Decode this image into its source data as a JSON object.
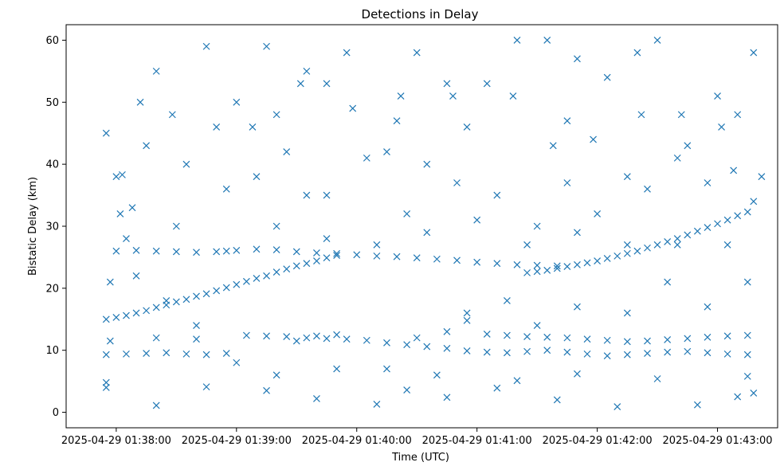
{
  "chart_data": {
    "type": "scatter",
    "title": "Detections in Delay",
    "xlabel": "Time (UTC)",
    "ylabel": "Bistatic Delay (km)",
    "marker": "x",
    "color": "#1f77b4",
    "grid": false,
    "x_unit": "seconds after 2025-04-29 01:38:00",
    "xlim": [
      -25,
      330
    ],
    "ylim": [
      -2.5,
      62.5
    ],
    "x_ticks": [
      {
        "value": 0,
        "label": "2025-04-29 01:38:00"
      },
      {
        "value": 60,
        "label": "2025-04-29 01:39:00"
      },
      {
        "value": 120,
        "label": "2025-04-29 01:40:00"
      },
      {
        "value": 180,
        "label": "2025-04-29 01:41:00"
      },
      {
        "value": 240,
        "label": "2025-04-29 01:42:00"
      },
      {
        "value": 300,
        "label": "2025-04-29 01:43:00"
      }
    ],
    "y_ticks": [
      {
        "value": 0,
        "label": "0"
      },
      {
        "value": 10,
        "label": "10"
      },
      {
        "value": 20,
        "label": "20"
      },
      {
        "value": 30,
        "label": "30"
      },
      {
        "value": 40,
        "label": "40"
      },
      {
        "value": 50,
        "label": "50"
      },
      {
        "value": 60,
        "label": "60"
      }
    ],
    "series": [
      {
        "values": [
          [
            -5,
            15
          ],
          [
            0,
            15.3
          ],
          [
            5,
            15.6
          ],
          [
            10,
            16
          ],
          [
            15,
            16.4
          ],
          [
            20,
            16.9
          ],
          [
            25,
            17.3
          ],
          [
            30,
            17.8
          ],
          [
            35,
            18.2
          ],
          [
            40,
            18.7
          ],
          [
            45,
            19.1
          ],
          [
            50,
            19.6
          ],
          [
            55,
            20.1
          ],
          [
            60,
            20.6
          ],
          [
            65,
            21.1
          ],
          [
            70,
            21.6
          ],
          [
            75,
            22
          ],
          [
            80,
            22.6
          ],
          [
            85,
            23.1
          ],
          [
            90,
            23.6
          ],
          [
            95,
            24
          ],
          [
            100,
            24.4
          ],
          [
            105,
            24.9
          ],
          [
            110,
            25.3
          ],
          [
            205,
            22.5
          ],
          [
            210,
            22.7
          ],
          [
            215,
            22.9
          ],
          [
            220,
            23.2
          ],
          [
            225,
            23.5
          ],
          [
            230,
            23.8
          ],
          [
            235,
            24.1
          ],
          [
            240,
            24.4
          ],
          [
            245,
            24.8
          ],
          [
            250,
            25.2
          ],
          [
            255,
            25.6
          ],
          [
            260,
            26
          ],
          [
            265,
            26.5
          ],
          [
            270,
            27
          ],
          [
            275,
            27.5
          ],
          [
            280,
            28
          ],
          [
            285,
            28.6
          ],
          [
            290,
            29.2
          ],
          [
            295,
            29.8
          ],
          [
            300,
            30.4
          ],
          [
            305,
            31
          ],
          [
            310,
            31.7
          ],
          [
            315,
            32.3
          ],
          [
            0,
            26
          ],
          [
            10,
            26.1
          ],
          [
            20,
            26
          ],
          [
            30,
            25.9
          ],
          [
            40,
            25.8
          ],
          [
            50,
            25.9
          ],
          [
            60,
            26.1
          ],
          [
            70,
            26.3
          ],
          [
            80,
            26.2
          ],
          [
            90,
            25.9
          ],
          [
            100,
            25.7
          ],
          [
            110,
            25.6
          ],
          [
            120,
            25.4
          ],
          [
            130,
            25.2
          ],
          [
            140,
            25.1
          ],
          [
            150,
            24.9
          ],
          [
            160,
            24.7
          ],
          [
            170,
            24.5
          ],
          [
            180,
            24.2
          ],
          [
            190,
            24
          ],
          [
            200,
            23.8
          ],
          [
            210,
            23.7
          ],
          [
            220,
            23.6
          ],
          [
            -5,
            9.3
          ],
          [
            5,
            9.4
          ],
          [
            15,
            9.5
          ],
          [
            25,
            9.6
          ],
          [
            35,
            9.4
          ],
          [
            45,
            9.3
          ],
          [
            55,
            9.5
          ],
          [
            65,
            12.4
          ],
          [
            75,
            12.3
          ],
          [
            85,
            12.2
          ],
          [
            95,
            12
          ],
          [
            105,
            11.9
          ],
          [
            115,
            11.8
          ],
          [
            125,
            11.6
          ],
          [
            135,
            11.2
          ],
          [
            145,
            10.9
          ],
          [
            155,
            10.6
          ],
          [
            165,
            10.3
          ],
          [
            175,
            9.9
          ],
          [
            185,
            9.7
          ],
          [
            195,
            9.6
          ],
          [
            205,
            9.8
          ],
          [
            215,
            10
          ],
          [
            225,
            9.7
          ],
          [
            235,
            9.4
          ],
          [
            245,
            9.1
          ],
          [
            255,
            9.3
          ],
          [
            265,
            9.5
          ],
          [
            275,
            9.7
          ],
          [
            285,
            9.8
          ],
          [
            295,
            9.6
          ],
          [
            305,
            9.4
          ],
          [
            315,
            9.3
          ],
          [
            -3,
            11.5
          ],
          [
            20,
            12
          ],
          [
            40,
            11.8
          ],
          [
            90,
            11.5
          ],
          [
            100,
            12.3
          ],
          [
            110,
            12.5
          ],
          [
            150,
            12
          ],
          [
            165,
            13
          ],
          [
            175,
            14.8
          ],
          [
            185,
            12.6
          ],
          [
            195,
            12.4
          ],
          [
            205,
            12.2
          ],
          [
            215,
            12.1
          ],
          [
            225,
            12
          ],
          [
            235,
            11.8
          ],
          [
            245,
            11.6
          ],
          [
            255,
            11.4
          ],
          [
            265,
            11.5
          ],
          [
            275,
            11.7
          ],
          [
            285,
            11.9
          ],
          [
            295,
            12.1
          ],
          [
            305,
            12.3
          ],
          [
            315,
            12.4
          ],
          [
            45,
            4.1
          ],
          [
            130,
            1.3
          ],
          [
            165,
            2.4
          ],
          [
            190,
            3.9
          ],
          [
            220,
            2
          ],
          [
            250,
            0.9
          ],
          [
            290,
            1.2
          ],
          [
            310,
            2.5
          ],
          [
            318,
            3.1
          ],
          [
            -5,
            4.8
          ],
          [
            20,
            1.1
          ],
          [
            75,
            3.5
          ],
          [
            100,
            2.2
          ],
          [
            145,
            3.6
          ],
          [
            200,
            5.1
          ],
          [
            230,
            6.2
          ],
          [
            270,
            5.4
          ],
          [
            315,
            5.8
          ],
          [
            -5,
            45
          ],
          [
            0,
            38
          ],
          [
            15,
            43
          ],
          [
            20,
            55
          ],
          [
            45,
            59
          ],
          [
            60,
            50
          ],
          [
            75,
            59
          ],
          [
            80,
            48
          ],
          [
            95,
            55
          ],
          [
            105,
            53
          ],
          [
            115,
            58
          ],
          [
            140,
            47
          ],
          [
            150,
            58
          ],
          [
            165,
            53
          ],
          [
            175,
            46
          ],
          [
            185,
            53
          ],
          [
            200,
            60
          ],
          [
            215,
            60
          ],
          [
            225,
            47
          ],
          [
            230,
            57
          ],
          [
            245,
            54
          ],
          [
            260,
            58
          ],
          [
            270,
            60
          ],
          [
            285,
            43
          ],
          [
            300,
            51
          ],
          [
            310,
            48
          ],
          [
            318,
            58
          ],
          [
            2,
            32
          ],
          [
            8,
            33
          ],
          [
            35,
            40
          ],
          [
            55,
            36
          ],
          [
            70,
            38
          ],
          [
            85,
            42
          ],
          [
            95,
            35
          ],
          [
            105,
            35
          ],
          [
            125,
            41
          ],
          [
            135,
            42
          ],
          [
            145,
            32
          ],
          [
            155,
            40
          ],
          [
            170,
            37
          ],
          [
            190,
            35
          ],
          [
            210,
            30
          ],
          [
            225,
            37
          ],
          [
            240,
            32
          ],
          [
            255,
            38
          ],
          [
            265,
            36
          ],
          [
            280,
            41
          ],
          [
            295,
            37
          ],
          [
            308,
            39
          ],
          [
            318,
            34
          ],
          [
            -3,
            21
          ],
          [
            10,
            22
          ],
          [
            25,
            18
          ],
          [
            40,
            14
          ],
          [
            60,
            8
          ],
          [
            80,
            6
          ],
          [
            110,
            7
          ],
          [
            135,
            7
          ],
          [
            160,
            6
          ],
          [
            175,
            16
          ],
          [
            195,
            18
          ],
          [
            210,
            14
          ],
          [
            230,
            17
          ],
          [
            255,
            16
          ],
          [
            275,
            21
          ],
          [
            295,
            17
          ],
          [
            315,
            21
          ],
          [
            5,
            28
          ],
          [
            30,
            30
          ],
          [
            55,
            26
          ],
          [
            80,
            30
          ],
          [
            105,
            28
          ],
          [
            130,
            27
          ],
          [
            155,
            29
          ],
          [
            180,
            31
          ],
          [
            205,
            27
          ],
          [
            230,
            29
          ],
          [
            255,
            27
          ],
          [
            280,
            27
          ],
          [
            305,
            27
          ],
          [
            -5,
            4
          ],
          [
            3,
            38.3
          ],
          [
            12,
            50
          ],
          [
            28,
            48
          ],
          [
            50,
            46
          ],
          [
            68,
            46
          ],
          [
            92,
            53
          ],
          [
            118,
            49
          ],
          [
            142,
            51
          ],
          [
            168,
            51
          ],
          [
            198,
            51
          ],
          [
            218,
            43
          ],
          [
            238,
            44
          ],
          [
            262,
            48
          ],
          [
            282,
            48
          ],
          [
            302,
            46
          ],
          [
            322,
            38
          ]
        ]
      }
    ]
  }
}
